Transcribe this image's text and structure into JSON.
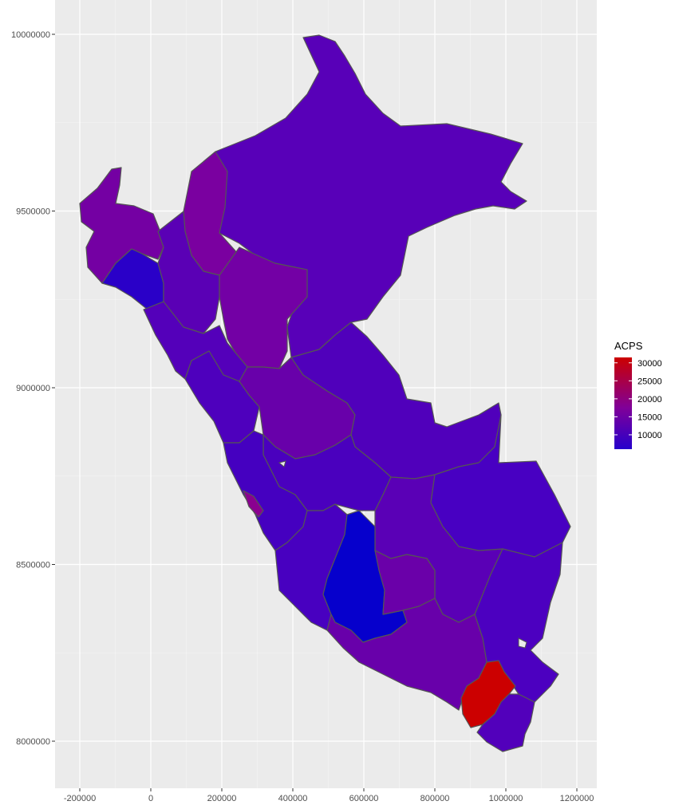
{
  "chart_data": {
    "type": "choropleth",
    "x_ticks": [
      "-200000",
      "0",
      "200000",
      "400000",
      "600000",
      "800000",
      "1000000",
      "1200000"
    ],
    "y_ticks": [
      "10000000",
      "9500000",
      "9000000",
      "8500000",
      "8000000"
    ],
    "legend": {
      "title": "ACPS",
      "labels": [
        "30000",
        "25000",
        "20000",
        "15000",
        "10000"
      ],
      "low_color": "#0000cc",
      "high_color": "#cc0000",
      "position": "right"
    },
    "panel_background": "#ebebeb",
    "grid": true
  }
}
